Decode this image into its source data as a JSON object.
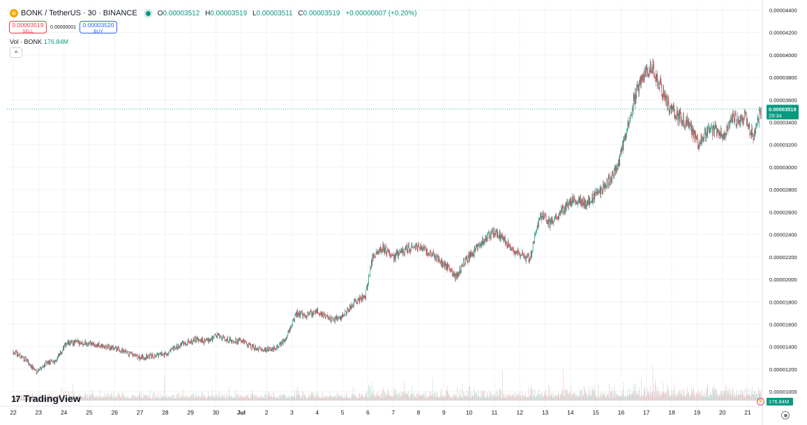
{
  "header": {
    "symbol": "BONK / TetherUS · 30 · BINANCE",
    "ohlc": {
      "o_label": "O",
      "o": "0.00003512",
      "h_label": "H",
      "h": "0.00003519",
      "l_label": "L",
      "l": "0.00003511",
      "c_label": "C",
      "c": "0.00003519",
      "change": "+0.00000007 (+0.20%)"
    }
  },
  "trade": {
    "sell_price": "0.00003519",
    "sell_label": "SELL",
    "spread": "0.00000001",
    "buy_price": "0.00003520",
    "buy_label": "BUY"
  },
  "volume_legend": {
    "label": "Vol · BONK",
    "value": "176.84M"
  },
  "collapse_glyph": "^",
  "logo_mark": "17",
  "logo_text": "TradingView",
  "bolt_glyph": "⚡",
  "colors": {
    "up": "#089981",
    "down": "#f23645",
    "vol_up": "#a6d5cd",
    "vol_down": "#f7b0b4",
    "grid": "#f0f3fa",
    "axis_text": "#131722"
  },
  "chart_data": {
    "type": "candlestick",
    "title": "",
    "y_ticks": [
      "0.00004400",
      "0.00004200",
      "0.00004000",
      "0.00003800",
      "0.00003600",
      "0.00003400",
      "0.00003200",
      "0.00003000",
      "0.00002800",
      "0.00002600",
      "0.00002400",
      "0.00002200",
      "0.00002000",
      "0.00001800",
      "0.00001600",
      "0.00001400",
      "0.00001200",
      "0.00001000"
    ],
    "y_tick_values": [
      4.4e-05,
      4.2e-05,
      4e-05,
      3.8e-05,
      3.6e-05,
      3.4e-05,
      3.2e-05,
      3e-05,
      2.8e-05,
      2.6e-05,
      2.4e-05,
      2.2e-05,
      2e-05,
      1.8e-05,
      1.6e-05,
      1.4e-05,
      1.2e-05,
      1e-05
    ],
    "ylim": [
      9.2e-06,
      4.44e-05
    ],
    "x_ticks": [
      "22",
      "23",
      "24",
      "25",
      "26",
      "27",
      "28",
      "29",
      "30",
      "Jul",
      "2",
      "3",
      "4",
      "5",
      "6",
      "7",
      "8",
      "9",
      "10",
      "11",
      "12",
      "13",
      "14",
      "15",
      "16",
      "17",
      "18",
      "19",
      "20",
      "21"
    ],
    "x_tick_days": [
      0,
      1,
      2,
      3,
      4,
      5,
      6,
      7,
      8,
      9,
      10,
      11,
      12,
      13,
      14,
      15,
      16,
      17,
      18,
      19,
      20,
      21,
      22,
      23,
      24,
      25,
      26,
      27,
      28,
      29
    ],
    "x_range_days": [
      -0.25,
      29.55
    ],
    "last_price": {
      "label": "0.00003519",
      "value": 3.519e-05,
      "countdown": "29:34"
    },
    "last_volume_label": "176.84M",
    "close_anchors": [
      [
        0,
        1.36e-05
      ],
      [
        0.5,
        1.28e-05
      ],
      [
        0.9,
        1.18e-05
      ],
      [
        1.3,
        1.25e-05
      ],
      [
        1.7,
        1.28e-05
      ],
      [
        2.1,
        1.43e-05
      ],
      [
        2.6,
        1.44e-05
      ],
      [
        3,
        1.43e-05
      ],
      [
        3.5,
        1.4e-05
      ],
      [
        4,
        1.39e-05
      ],
      [
        4.6,
        1.33e-05
      ],
      [
        5,
        1.3e-05
      ],
      [
        5.5,
        1.32e-05
      ],
      [
        6.1,
        1.34e-05
      ],
      [
        6.6,
        1.42e-05
      ],
      [
        7.1,
        1.46e-05
      ],
      [
        7.6,
        1.45e-05
      ],
      [
        8,
        1.5e-05
      ],
      [
        8.5,
        1.46e-05
      ],
      [
        9,
        1.45e-05
      ],
      [
        9.4,
        1.4e-05
      ],
      [
        9.9,
        1.37e-05
      ],
      [
        10.3,
        1.38e-05
      ],
      [
        10.7,
        1.45e-05
      ],
      [
        11.2,
        1.7e-05
      ],
      [
        11.6,
        1.68e-05
      ],
      [
        12,
        1.72e-05
      ],
      [
        12.6,
        1.63e-05
      ],
      [
        13,
        1.67e-05
      ],
      [
        13.5,
        1.8e-05
      ],
      [
        13.9,
        1.85e-05
      ],
      [
        14.2,
        2.22e-05
      ],
      [
        14.6,
        2.28e-05
      ],
      [
        15,
        2.2e-05
      ],
      [
        15.6,
        2.28e-05
      ],
      [
        16,
        2.3e-05
      ],
      [
        16.6,
        2.21e-05
      ],
      [
        17.1,
        2.12e-05
      ],
      [
        17.5,
        2.02e-05
      ],
      [
        17.8,
        2.15e-05
      ],
      [
        18.2,
        2.25e-05
      ],
      [
        18.7,
        2.38e-05
      ],
      [
        19,
        2.43e-05
      ],
      [
        19.5,
        2.32e-05
      ],
      [
        20,
        2.22e-05
      ],
      [
        20.4,
        2.18e-05
      ],
      [
        20.8,
        2.58e-05
      ],
      [
        21.2,
        2.5e-05
      ],
      [
        21.6,
        2.6e-05
      ],
      [
        22.1,
        2.72e-05
      ],
      [
        22.6,
        2.68e-05
      ],
      [
        23,
        2.75e-05
      ],
      [
        23.5,
        2.87e-05
      ],
      [
        23.8,
        2.97e-05
      ],
      [
        24.1,
        3.2e-05
      ],
      [
        24.5,
        3.6e-05
      ],
      [
        24.9,
        3.83e-05
      ],
      [
        25.2,
        3.9e-05
      ],
      [
        25.5,
        3.75e-05
      ],
      [
        25.9,
        3.52e-05
      ],
      [
        26.3,
        3.45e-05
      ],
      [
        26.7,
        3.38e-05
      ],
      [
        27.1,
        3.2e-05
      ],
      [
        27.5,
        3.35e-05
      ],
      [
        28,
        3.3e-05
      ],
      [
        28.4,
        3.42e-05
      ],
      [
        28.9,
        3.45e-05
      ],
      [
        29.2,
        3.27e-05
      ],
      [
        29.55,
        3.52e-05
      ]
    ],
    "volume_scale_max": 0.29
  }
}
